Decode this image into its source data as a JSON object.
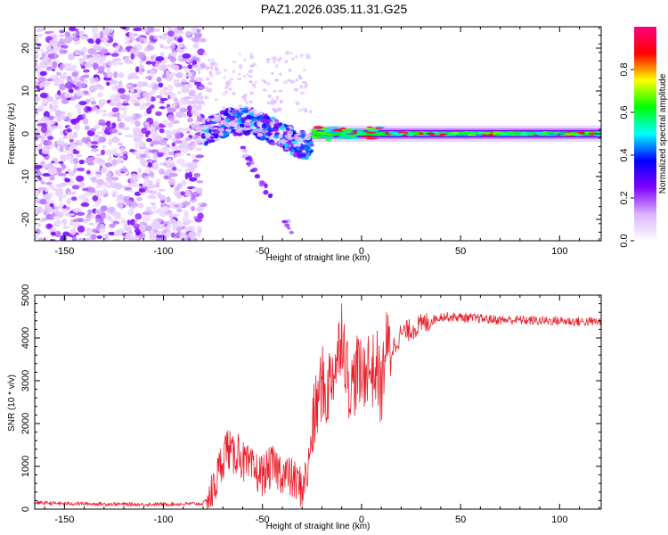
{
  "title": "PAZ1.2026.035.11.31.G25",
  "chart_data": [
    {
      "type": "heatmap",
      "xlabel": "Height of straight line (km)",
      "ylabel": "Frequency (Hz)",
      "xlim": [
        -165,
        121
      ],
      "ylim": [
        -25,
        25
      ],
      "x_ticks": [
        -150,
        -100,
        -50,
        0,
        50,
        100
      ],
      "y_ticks": [
        -20,
        -10,
        0,
        10,
        20
      ],
      "x_tick_labels": [
        "-150",
        "-100",
        "-50",
        "0",
        "50",
        "100"
      ],
      "y_tick_labels": [
        "-20",
        "-10",
        "0",
        "10",
        "20"
      ],
      "colorbar": {
        "label": "Normalized spectral amplitude",
        "range": [
          0,
          1
        ],
        "ticks": [
          0.0,
          0.2,
          0.4,
          0.6,
          0.8
        ],
        "tick_labels": [
          "0.0",
          "0.2",
          "0.4",
          "0.6",
          "0.8"
        ],
        "colors": [
          "#ffffff",
          "#d9b3ff",
          "#8000ff",
          "#0000ff",
          "#00ffff",
          "#00ff00",
          "#ffff00",
          "#ff0000",
          "#ff0080"
        ]
      },
      "regions": [
        {
          "name": "noise",
          "x_range": [
            -165,
            -80
          ],
          "freq_range": [
            -25,
            25
          ],
          "amplitude": 0.1
        },
        {
          "name": "transition",
          "x_range": [
            -80,
            -25
          ],
          "freq_center": 3,
          "amplitude": 0.35
        },
        {
          "name": "tone",
          "x_range": [
            -25,
            121
          ],
          "freq_center": 0,
          "amplitude": 0.9
        }
      ]
    },
    {
      "type": "line",
      "xlabel": "Height of straight line (km)",
      "ylabel": "SNR (10 * v/v)",
      "xlim": [
        -165,
        121
      ],
      "ylim": [
        0,
        5000
      ],
      "x_ticks": [
        -150,
        -100,
        -50,
        0,
        50,
        100
      ],
      "y_ticks": [
        0,
        1000,
        2000,
        3000,
        4000,
        5000
      ],
      "x_tick_labels": [
        "-150",
        "-100",
        "-50",
        "0",
        "50",
        "100"
      ],
      "y_tick_labels": [
        "0",
        "1000",
        "2000",
        "3000",
        "4000",
        "5000"
      ],
      "color": "#e8202a",
      "series": [
        {
          "name": "SNR",
          "x": [
            -165,
            -150,
            -130,
            -110,
            -90,
            -80,
            -75,
            -72,
            -68,
            -65,
            -62,
            -60,
            -55,
            -50,
            -45,
            -40,
            -35,
            -30,
            -27,
            -25,
            -23,
            -20,
            -18,
            -15,
            -12,
            -10,
            -7,
            -5,
            -2,
            0,
            3,
            5,
            8,
            10,
            12,
            15,
            20,
            25,
            30,
            35,
            40,
            50,
            60,
            70,
            80,
            90,
            100,
            110,
            121
          ],
          "y": [
            150,
            130,
            120,
            110,
            120,
            130,
            400,
            900,
            1500,
            1200,
            1400,
            1100,
            900,
            800,
            1000,
            850,
            700,
            500,
            900,
            1800,
            2300,
            3000,
            2600,
            3200,
            3500,
            4300,
            3100,
            2800,
            3300,
            3000,
            3400,
            3200,
            3300,
            2700,
            3800,
            3700,
            4100,
            4200,
            4300,
            4400,
            4500,
            4480,
            4450,
            4420,
            4420,
            4400,
            4400,
            4380,
            4380
          ]
        }
      ]
    }
  ]
}
